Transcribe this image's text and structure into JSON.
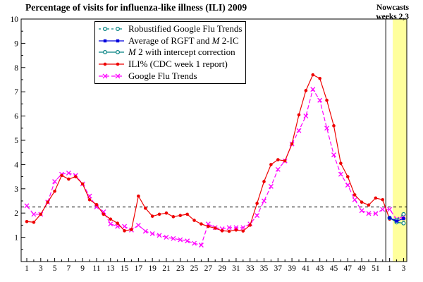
{
  "title": "Percentage of visits for influenza-like illness (ILI) 2009",
  "annotation": {
    "line1": "Nowcasts",
    "line2": "weeks 2,3"
  },
  "legend": {
    "items": [
      {
        "pre": "Robustified Google Flu Trends",
        "it": "",
        "post": ""
      },
      {
        "pre": "Average of RGFT and ",
        "it": "M",
        "post": " 2-IC"
      },
      {
        "pre": "",
        "it": "M",
        "post": " 2 with intercept correction"
      },
      {
        "pre": "ILI% (CDC week 1 report)",
        "it": "",
        "post": ""
      },
      {
        "pre": "Google Flu Trends",
        "it": "",
        "post": ""
      }
    ]
  },
  "colors": {
    "nowcast_band": "#FFFF9C",
    "frame": "#000000",
    "baseline": "#000000",
    "red": "#EE0000",
    "magenta": "#FF00FF",
    "blue": "#0000DD",
    "teal": "#008080"
  },
  "chart_data": {
    "type": "line",
    "title": "Percentage of visits for influenza-like illness (ILI) 2009",
    "xlabel": "",
    "ylabel": "",
    "ylim": [
      0,
      10
    ],
    "y_ticks": [
      1,
      2,
      3,
      4,
      5,
      6,
      7,
      8,
      9,
      10
    ],
    "y_minor_step": 0.5,
    "x_range_weeks": [
      0.2,
      55.5
    ],
    "x_minor_every": 1,
    "weeks_2010_start_index": 53,
    "x_tick_labels": [
      {
        "i": 1,
        "l": "1"
      },
      {
        "i": 3,
        "l": "3"
      },
      {
        "i": 5,
        "l": "5"
      },
      {
        "i": 7,
        "l": "7"
      },
      {
        "i": 9,
        "l": "9"
      },
      {
        "i": 11,
        "l": "11"
      },
      {
        "i": 13,
        "l": "13"
      },
      {
        "i": 15,
        "l": "15"
      },
      {
        "i": 17,
        "l": "17"
      },
      {
        "i": 19,
        "l": "19"
      },
      {
        "i": 21,
        "l": "21"
      },
      {
        "i": 23,
        "l": "23"
      },
      {
        "i": 25,
        "l": "25"
      },
      {
        "i": 27,
        "l": "27"
      },
      {
        "i": 29,
        "l": "29"
      },
      {
        "i": 31,
        "l": "31"
      },
      {
        "i": 33,
        "l": "33"
      },
      {
        "i": 35,
        "l": "35"
      },
      {
        "i": 37,
        "l": "37"
      },
      {
        "i": 39,
        "l": "39"
      },
      {
        "i": 41,
        "l": "41"
      },
      {
        "i": 43,
        "l": "43"
      },
      {
        "i": 45,
        "l": "45"
      },
      {
        "i": 47,
        "l": "47"
      },
      {
        "i": 49,
        "l": "49"
      },
      {
        "i": 51,
        "l": "51"
      },
      {
        "i": 53,
        "l": "1"
      },
      {
        "i": 55,
        "l": "3"
      }
    ],
    "baseline_value": 2.25,
    "year_separator_week": 52.45,
    "nowcast_band_weeks": [
      53.45,
      55.5
    ],
    "legend_position": "top-center",
    "grid": false,
    "series": [
      {
        "name": "Robustified Google Flu Trends",
        "color": "#008080",
        "line": "dashed-short",
        "marker": "circle-open",
        "x_start": 53,
        "y": [
          1.8,
          1.72,
          1.95
        ]
      },
      {
        "name": "Average of RGFT and M 2-IC",
        "color": "#0000DD",
        "line": "solid",
        "marker": "square",
        "x_start": 53,
        "y": [
          1.8,
          1.67,
          1.77
        ]
      },
      {
        "name": "M 2 with intercept correction",
        "color": "#008080",
        "line": "solid",
        "marker": "circle-open",
        "x_start": 53,
        "y": [
          1.8,
          1.62,
          1.58
        ]
      },
      {
        "name": "ILI% (CDC week 1 report)",
        "color": "#EE0000",
        "line": "solid",
        "marker": "dot",
        "x_start": 1,
        "y": [
          1.65,
          1.62,
          1.95,
          2.45,
          2.9,
          3.55,
          3.4,
          3.5,
          3.2,
          2.55,
          2.35,
          1.95,
          1.75,
          1.58,
          1.27,
          1.32,
          2.7,
          2.2,
          1.87,
          1.95,
          2.0,
          1.85,
          1.9,
          1.95,
          1.7,
          1.55,
          1.45,
          1.38,
          1.27,
          1.25,
          1.3,
          1.26,
          1.5,
          2.4,
          3.3,
          4.0,
          4.2,
          4.15,
          4.85,
          6.05,
          7.05,
          7.7,
          7.55,
          6.65,
          5.6,
          4.05,
          3.5,
          2.75,
          2.45,
          2.33,
          2.62,
          2.55,
          1.75
        ]
      },
      {
        "name": "Google Flu Trends",
        "color": "#FF00FF",
        "line": "dashed-long",
        "marker": "x",
        "x_start": 1,
        "y": [
          2.3,
          1.95,
          1.95,
          2.45,
          3.3,
          3.6,
          3.65,
          3.55,
          3.2,
          2.7,
          2.25,
          2.05,
          1.55,
          1.45,
          1.45,
          1.3,
          1.5,
          1.25,
          1.15,
          1.08,
          1.0,
          0.95,
          0.9,
          0.85,
          0.75,
          0.68,
          1.55,
          1.4,
          1.35,
          1.4,
          1.4,
          1.4,
          1.55,
          1.9,
          2.5,
          3.1,
          3.8,
          4.15,
          4.85,
          5.4,
          6.0,
          7.1,
          6.65,
          5.5,
          4.4,
          3.6,
          3.15,
          2.55,
          2.1,
          1.98,
          1.98,
          2.15,
          2.15,
          1.75,
          1.85
        ]
      }
    ]
  }
}
